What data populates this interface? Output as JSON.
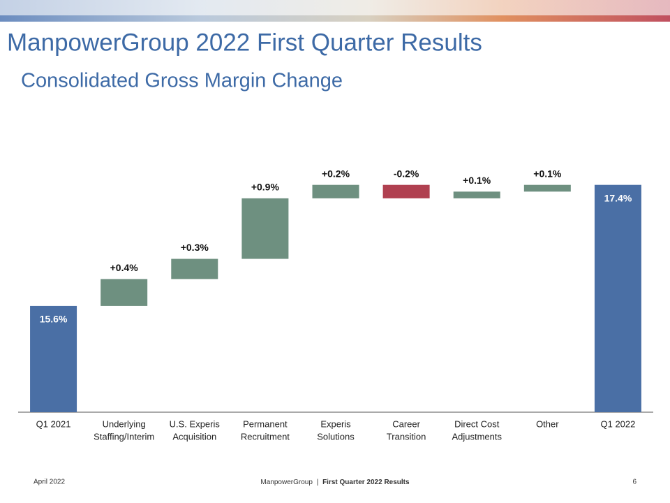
{
  "header": {
    "title": "ManpowerGroup 2022 First Quarter Results",
    "subtitle": "Consolidated Gross Margin Change"
  },
  "chart_data": {
    "type": "waterfall",
    "categories": [
      [
        "Q1 2021"
      ],
      [
        "Underlying",
        "Staffing/Interim"
      ],
      [
        "U.S. Experis",
        "Acquisition"
      ],
      [
        "Permanent",
        "Recruitment"
      ],
      [
        "Experis",
        "Solutions"
      ],
      [
        "Career",
        "Transition"
      ],
      [
        "Direct Cost",
        "Adjustments"
      ],
      [
        "Other"
      ],
      [
        "Q1 2022"
      ]
    ],
    "values": [
      15.6,
      0.4,
      0.3,
      0.9,
      0.2,
      -0.2,
      0.1,
      0.1,
      17.4
    ],
    "value_labels": [
      "15.6%",
      "+0.4%",
      "+0.3%",
      "+0.9%",
      "+0.2%",
      "-0.2%",
      "+0.1%",
      "+0.1%",
      "17.4%"
    ],
    "bar_kinds": [
      "total",
      "delta",
      "delta",
      "delta",
      "delta",
      "delta",
      "delta",
      "delta",
      "total"
    ],
    "colors": [
      "#4a6fa5",
      "#6e9080",
      "#6e9080",
      "#6e9080",
      "#6e9080",
      "#b04050",
      "#6e9080",
      "#6e9080",
      "#4a6fa5"
    ],
    "ylim": [
      14.02,
      17.76
    ]
  },
  "footer": {
    "date": "April 2022",
    "company": "ManpowerGroup",
    "separator": "|",
    "report": "First Quarter 2022 Results",
    "page": "6"
  }
}
